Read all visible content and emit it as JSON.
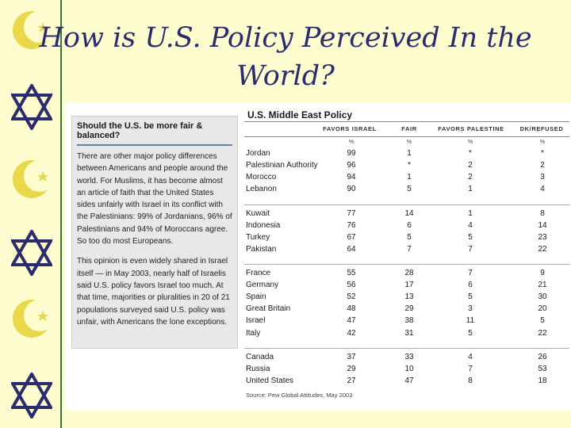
{
  "title_line1": "How is U.S. Policy Perceived In the",
  "title_line2": "World?",
  "colors": {
    "background": "#fdfdcf",
    "title": "#2b2b6e",
    "star_of_david": "#2b2b6e",
    "crescent": "#e8d84a",
    "divider": "#2e7d32"
  },
  "sidebar": {
    "heading": "Should the U.S. be more fair & balanced?",
    "p1": "There are other major policy differences between Americans and people around the world. For Muslims, it has become almost an article of faith that the United States sides unfairly with Israel in its conflict with the Palestinians: 99% of Jordanians, 96% of Palestinians and 94% of Moroccans agree. So too do most Europeans.",
    "p2": "This opinion is even widely shared in Israel itself — in May 2003, nearly half of Israelis said U.S. policy favors Israel too much. At that time, majorities or pluralities in 20 of 21 populations surveyed said U.S. policy was unfair, with Americans the lone exceptions."
  },
  "table": {
    "title": "U.S. Middle East Policy",
    "headers": [
      "FAVORS ISRAEL",
      "FAIR",
      "FAVORS PALESTINE",
      "DK/REFUSED"
    ],
    "unit": "%",
    "groups": [
      [
        [
          "Jordan",
          "99",
          "1",
          "*",
          "*"
        ],
        [
          "Palestinian Authority",
          "96",
          "*",
          "2",
          "2"
        ],
        [
          "Morocco",
          "94",
          "1",
          "2",
          "3"
        ],
        [
          "Lebanon",
          "90",
          "5",
          "1",
          "4"
        ]
      ],
      [
        [
          "Kuwait",
          "77",
          "14",
          "1",
          "8"
        ],
        [
          "Indonesia",
          "76",
          "6",
          "4",
          "14"
        ],
        [
          "Turkey",
          "67",
          "5",
          "5",
          "23"
        ],
        [
          "Pakistan",
          "64",
          "7",
          "7",
          "22"
        ]
      ],
      [
        [
          "France",
          "55",
          "28",
          "7",
          "9"
        ],
        [
          "Germany",
          "56",
          "17",
          "6",
          "21"
        ],
        [
          "Spain",
          "52",
          "13",
          "5",
          "30"
        ],
        [
          "Great Britain",
          "48",
          "29",
          "3",
          "20"
        ],
        [
          "Israel",
          "47",
          "38",
          "11",
          "5"
        ],
        [
          "Italy",
          "42",
          "31",
          "5",
          "22"
        ]
      ],
      [
        [
          "Canada",
          "37",
          "33",
          "4",
          "26"
        ],
        [
          "Russia",
          "29",
          "10",
          "7",
          "53"
        ],
        [
          "United States",
          "27",
          "47",
          "8",
          "18"
        ]
      ]
    ],
    "source": "Source: Pew Global Attitudes, May 2003"
  }
}
